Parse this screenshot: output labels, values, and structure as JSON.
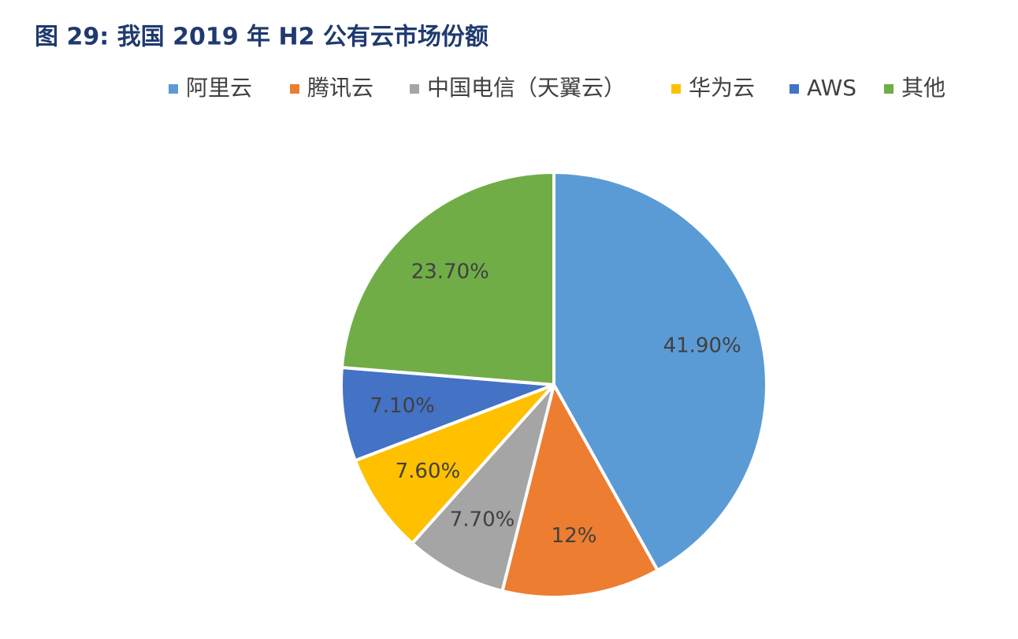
{
  "chart_data": {
    "type": "pie",
    "title": "图 29: 我国 2019 年 H2 公有云市场份额",
    "categories": [
      "阿里云",
      "腾讯云",
      "中国电信（天翼云）",
      "华为云",
      "AWS",
      "其他"
    ],
    "values": [
      41.9,
      12,
      7.7,
      7.6,
      7.1,
      23.7
    ],
    "value_labels": [
      "41.90%",
      "12%",
      "7.70%",
      "7.60%",
      "7.10%",
      "23.70%"
    ],
    "colors": [
      "#5b9bd5",
      "#ed7d31",
      "#a5a5a5",
      "#ffc000",
      "#4472c4",
      "#70ad47"
    ],
    "legend": "top"
  }
}
